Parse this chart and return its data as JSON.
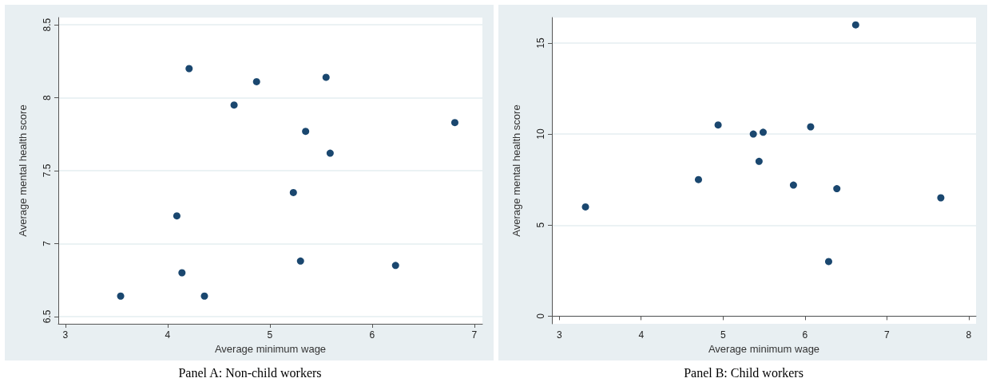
{
  "chart_data": [
    {
      "type": "scatter",
      "title": "Panel A: Non-child workers",
      "xlabel": "Average minimum wage",
      "ylabel": "Average mental health score",
      "x": [
        4.21,
        4.87,
        5.55,
        4.65,
        6.81,
        5.35,
        5.59,
        5.23,
        4.09,
        5.3,
        6.23,
        4.14,
        3.54,
        4.36
      ],
      "values": [
        8.2,
        8.11,
        8.14,
        7.95,
        7.83,
        7.77,
        7.62,
        7.35,
        7.19,
        6.88,
        6.85,
        6.8,
        6.64,
        6.64
      ],
      "color": "#1a476f",
      "marker": "circle",
      "grid": "y",
      "xlim": [
        2.93,
        7.08
      ],
      "xticks": [
        3,
        4,
        5,
        6,
        7
      ],
      "ylim": [
        6.45,
        8.55
      ],
      "yticks": [
        6.5,
        7,
        7.5,
        8,
        8.5
      ]
    },
    {
      "type": "scatter",
      "title": "Panel B: Child workers",
      "xlabel": "Average minimum wage",
      "ylabel": "Average mental health score",
      "x": [
        6.62,
        4.94,
        5.37,
        5.49,
        6.07,
        5.44,
        4.7,
        5.86,
        6.39,
        7.66,
        3.32,
        6.29
      ],
      "values": [
        16.0,
        10.5,
        10.0,
        10.1,
        10.4,
        8.5,
        7.5,
        7.2,
        7.0,
        6.5,
        6.0,
        3.0
      ],
      "color": "#1a476f",
      "marker": "circle",
      "grid": "y",
      "xlim": [
        2.91,
        8.09
      ],
      "xticks": [
        3,
        4,
        5,
        6,
        7,
        8
      ],
      "ylim": [
        -0.42,
        16.4
      ],
      "yticks": [
        0,
        5,
        10,
        15
      ]
    }
  ]
}
